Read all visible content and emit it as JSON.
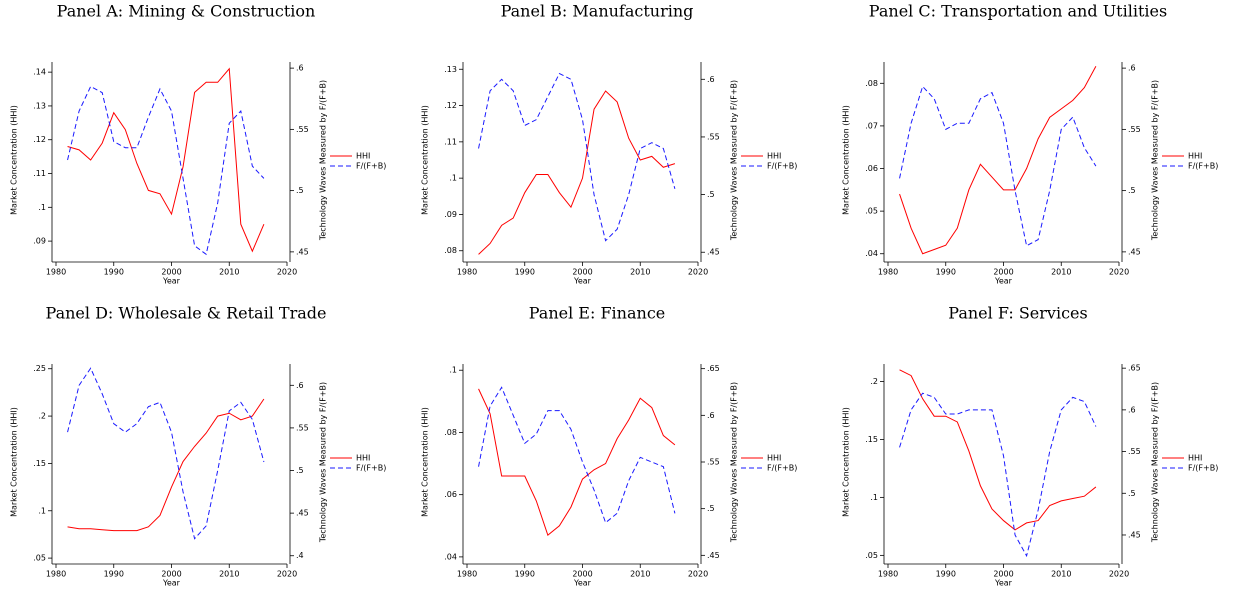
{
  "chart_data": [
    {
      "type": "line",
      "title": "Panel A: Mining & Construction",
      "x_label": "Year",
      "y_label": "Market Concentration (HHI)",
      "y2_label": "Technology Waves Measured by F/(F+B)",
      "x": [
        1982,
        1984,
        1986,
        1988,
        1990,
        1992,
        1994,
        1996,
        1998,
        2000,
        2002,
        2004,
        2006,
        2008,
        2010,
        2012,
        2014,
        2016
      ],
      "xlim": [
        1980,
        2020
      ],
      "xticks": [
        1980,
        1990,
        2000,
        2010,
        2020
      ],
      "ylim": [
        0.085,
        0.143
      ],
      "yticks": [
        {
          "value": 0.09,
          "label": ".09"
        },
        {
          "value": 0.1,
          "label": ".1"
        },
        {
          "value": 0.11,
          "label": ".11"
        },
        {
          "value": 0.12,
          "label": ".12"
        },
        {
          "value": 0.13,
          "label": ".13"
        },
        {
          "value": 0.14,
          "label": ".14"
        }
      ],
      "y2lim": [
        0.445,
        0.605
      ],
      "y2ticks": [
        {
          "value": 0.45,
          "label": ".45"
        },
        {
          "value": 0.5,
          "label": ".5"
        },
        {
          "value": 0.55,
          "label": ".55"
        },
        {
          "value": 0.6,
          "label": ".6"
        }
      ],
      "legend": "right",
      "series": [
        {
          "name": "HHI",
          "color": "#ff0000",
          "line_style": "solid",
          "values": [
            0.118,
            0.117,
            0.114,
            0.119,
            0.128,
            0.123,
            0.113,
            0.105,
            0.104,
            0.098,
            0.112,
            0.134,
            0.137,
            0.137,
            0.141,
            0.095,
            0.087,
            0.095
          ]
        },
        {
          "name": "F/(F+B)",
          "color": "#1a1aff",
          "line_style": "dashed",
          "axis": "y2",
          "values": [
            0.525,
            0.565,
            0.585,
            0.58,
            0.54,
            0.535,
            0.535,
            0.56,
            0.583,
            0.565,
            0.51,
            0.455,
            0.448,
            0.49,
            0.555,
            0.565,
            0.52,
            0.51
          ]
        }
      ]
    },
    {
      "type": "line",
      "title": "Panel B: Manufacturing",
      "x_label": "Year",
      "y_label": "Market Concentration (HHI)",
      "y2_label": "Technology Waves Measured by F/(F+B)",
      "x": [
        1982,
        1984,
        1986,
        1988,
        1990,
        1992,
        1994,
        1996,
        1998,
        2000,
        2002,
        2004,
        2006,
        2008,
        2010,
        2012,
        2014,
        2016
      ],
      "xlim": [
        1980,
        2020
      ],
      "xticks": [
        1980,
        1990,
        2000,
        2010,
        2020
      ],
      "ylim": [
        0.078,
        0.132
      ],
      "yticks": [
        {
          "value": 0.08,
          "label": ".08"
        },
        {
          "value": 0.09,
          "label": ".09"
        },
        {
          "value": 0.1,
          "label": ".1"
        },
        {
          "value": 0.11,
          "label": ".11"
        },
        {
          "value": 0.12,
          "label": ".12"
        },
        {
          "value": 0.13,
          "label": ".13"
        }
      ],
      "y2lim": [
        0.445,
        0.615
      ],
      "y2ticks": [
        {
          "value": 0.45,
          "label": ".45"
        },
        {
          "value": 0.5,
          "label": ".5"
        },
        {
          "value": 0.55,
          "label": ".55"
        },
        {
          "value": 0.6,
          "label": ".6"
        }
      ],
      "legend": "right",
      "series": [
        {
          "name": "HHI",
          "color": "#ff0000",
          "line_style": "solid",
          "values": [
            0.079,
            0.082,
            0.087,
            0.089,
            0.096,
            0.101,
            0.101,
            0.096,
            0.092,
            0.1,
            0.119,
            0.124,
            0.121,
            0.111,
            0.105,
            0.106,
            0.103,
            0.104
          ]
        },
        {
          "name": "F/(F+B)",
          "color": "#1a1aff",
          "line_style": "dashed",
          "axis": "y2",
          "values": [
            0.54,
            0.59,
            0.6,
            0.59,
            0.56,
            0.565,
            0.585,
            0.605,
            0.6,
            0.565,
            0.5,
            0.46,
            0.47,
            0.5,
            0.54,
            0.545,
            0.54,
            0.505
          ]
        }
      ]
    },
    {
      "type": "line",
      "title": "Panel C: Transportation and Utilities",
      "x_label": "Year",
      "y_label": "Market Concentration (HHI)",
      "y2_label": "Technology Waves Measured by F/(F+B)",
      "x": [
        1982,
        1984,
        1986,
        1988,
        1990,
        1992,
        1994,
        1996,
        1998,
        2000,
        2002,
        2004,
        2006,
        2008,
        2010,
        2012,
        2014,
        2016
      ],
      "xlim": [
        1980,
        2020
      ],
      "xticks": [
        1980,
        1990,
        2000,
        2010,
        2020
      ],
      "ylim": [
        0.039,
        0.085
      ],
      "yticks": [
        {
          "value": 0.04,
          "label": ".04"
        },
        {
          "value": 0.05,
          "label": ".05"
        },
        {
          "value": 0.06,
          "label": ".06"
        },
        {
          "value": 0.07,
          "label": ".07"
        },
        {
          "value": 0.08,
          "label": ".08"
        }
      ],
      "y2lim": [
        0.445,
        0.605
      ],
      "y2ticks": [
        {
          "value": 0.45,
          "label": ".45"
        },
        {
          "value": 0.5,
          "label": ".5"
        },
        {
          "value": 0.55,
          "label": ".55"
        },
        {
          "value": 0.6,
          "label": ".6"
        }
      ],
      "legend": "right",
      "series": [
        {
          "name": "HHI",
          "color": "#ff0000",
          "line_style": "solid",
          "values": [
            0.054,
            0.046,
            0.04,
            0.041,
            0.042,
            0.046,
            0.055,
            0.061,
            0.058,
            0.055,
            0.055,
            0.06,
            0.067,
            0.072,
            0.074,
            0.076,
            0.079,
            0.084
          ]
        },
        {
          "name": "F/(F+B)",
          "color": "#1a1aff",
          "line_style": "dashed",
          "axis": "y2",
          "values": [
            0.51,
            0.555,
            0.585,
            0.575,
            0.55,
            0.555,
            0.555,
            0.575,
            0.58,
            0.555,
            0.5,
            0.455,
            0.46,
            0.5,
            0.55,
            0.56,
            0.535,
            0.52
          ]
        }
      ]
    },
    {
      "type": "line",
      "title": "Panel D: Wholesale & Retail Trade",
      "x_label": "Year",
      "y_label": "Market Concentration (HHI)",
      "y2_label": "Technology Waves Measured by F/(F+B)",
      "x": [
        1982,
        1984,
        1986,
        1988,
        1990,
        1992,
        1994,
        1996,
        1998,
        2000,
        2002,
        2004,
        2006,
        2008,
        2010,
        2012,
        2014,
        2016
      ],
      "xlim": [
        1980,
        2020
      ],
      "xticks": [
        1980,
        1990,
        2000,
        2010,
        2020
      ],
      "ylim": [
        0.048,
        0.255
      ],
      "yticks": [
        {
          "value": 0.05,
          "label": ".05"
        },
        {
          "value": 0.1,
          "label": ".1"
        },
        {
          "value": 0.15,
          "label": ".15"
        },
        {
          "value": 0.2,
          "label": ".2"
        },
        {
          "value": 0.25,
          "label": ".25"
        }
      ],
      "y2lim": [
        0.395,
        0.625
      ],
      "y2ticks": [
        {
          "value": 0.4,
          "label": ".4"
        },
        {
          "value": 0.45,
          "label": ".45"
        },
        {
          "value": 0.5,
          "label": ".5"
        },
        {
          "value": 0.55,
          "label": ".55"
        },
        {
          "value": 0.6,
          "label": ".6"
        }
      ],
      "legend": "right",
      "series": [
        {
          "name": "HHI",
          "color": "#ff0000",
          "line_style": "solid",
          "values": [
            0.083,
            0.081,
            0.081,
            0.08,
            0.079,
            0.079,
            0.079,
            0.083,
            0.095,
            0.125,
            0.152,
            0.168,
            0.182,
            0.2,
            0.203,
            0.196,
            0.2,
            0.218
          ]
        },
        {
          "name": "F/(F+B)",
          "color": "#1a1aff",
          "line_style": "dashed",
          "axis": "y2",
          "values": [
            0.545,
            0.6,
            0.62,
            0.59,
            0.555,
            0.545,
            0.555,
            0.575,
            0.58,
            0.545,
            0.475,
            0.42,
            0.435,
            0.5,
            0.57,
            0.58,
            0.56,
            0.51
          ]
        }
      ]
    },
    {
      "type": "line",
      "title": "Panel E: Finance",
      "x_label": "Year",
      "y_label": "Market Concentration (HHI)",
      "y2_label": "Technology Waves Measured by F/(F+B)",
      "x": [
        1982,
        1984,
        1986,
        1988,
        1990,
        1992,
        1994,
        1996,
        1998,
        2000,
        2002,
        2004,
        2006,
        2008,
        2010,
        2012,
        2014,
        2016
      ],
      "xlim": [
        1980,
        2020
      ],
      "xticks": [
        1980,
        1990,
        2000,
        2010,
        2020
      ],
      "ylim": [
        0.039,
        0.102
      ],
      "yticks": [
        {
          "value": 0.04,
          "label": ".04"
        },
        {
          "value": 0.06,
          "label": ".06"
        },
        {
          "value": 0.08,
          "label": ".08"
        },
        {
          "value": 0.1,
          "label": ".1"
        }
      ],
      "y2lim": [
        0.445,
        0.655
      ],
      "y2ticks": [
        {
          "value": 0.45,
          "label": ".45"
        },
        {
          "value": 0.5,
          "label": ".5"
        },
        {
          "value": 0.55,
          "label": ".55"
        },
        {
          "value": 0.6,
          "label": ".6"
        },
        {
          "value": 0.65,
          "label": ".65"
        }
      ],
      "legend": "right",
      "series": [
        {
          "name": "HHI",
          "color": "#ff0000",
          "line_style": "solid",
          "values": [
            0.094,
            0.086,
            0.066,
            0.066,
            0.066,
            0.058,
            0.047,
            0.05,
            0.056,
            0.065,
            0.068,
            0.07,
            0.078,
            0.084,
            0.091,
            0.088,
            0.079,
            0.076
          ]
        },
        {
          "name": "F/(F+B)",
          "color": "#1a1aff",
          "line_style": "dashed",
          "axis": "y2",
          "values": [
            0.545,
            0.61,
            0.63,
            0.6,
            0.57,
            0.58,
            0.605,
            0.605,
            0.585,
            0.55,
            0.52,
            0.485,
            0.495,
            0.53,
            0.555,
            0.55,
            0.545,
            0.495
          ]
        }
      ]
    },
    {
      "type": "line",
      "title": "Panel F: Services",
      "x_label": "Year",
      "y_label": "Market Concentration (HHI)",
      "y2_label": "Technology Waves Measured by F/(F+B)",
      "x": [
        1982,
        1984,
        1986,
        1988,
        1990,
        1992,
        1994,
        1996,
        1998,
        2000,
        2002,
        2004,
        2006,
        2008,
        2010,
        2012,
        2014,
        2016
      ],
      "xlim": [
        1980,
        2020
      ],
      "xticks": [
        1980,
        1990,
        2000,
        2010,
        2020
      ],
      "ylim": [
        0.046,
        0.215
      ],
      "yticks": [
        {
          "value": 0.05,
          "label": ".05"
        },
        {
          "value": 0.1,
          "label": ".1"
        },
        {
          "value": 0.15,
          "label": ".15"
        },
        {
          "value": 0.2,
          "label": ".2"
        }
      ],
      "y2lim": [
        0.42,
        0.655
      ],
      "y2ticks": [
        {
          "value": 0.45,
          "label": ".45"
        },
        {
          "value": 0.5,
          "label": ".5"
        },
        {
          "value": 0.55,
          "label": ".55"
        },
        {
          "value": 0.6,
          "label": ".6"
        },
        {
          "value": 0.65,
          "label": ".65"
        }
      ],
      "legend": "right",
      "series": [
        {
          "name": "HHI",
          "color": "#ff0000",
          "line_style": "solid",
          "values": [
            0.21,
            0.205,
            0.185,
            0.17,
            0.17,
            0.165,
            0.14,
            0.11,
            0.09,
            0.08,
            0.072,
            0.078,
            0.08,
            0.093,
            0.097,
            0.099,
            0.101,
            0.109
          ]
        },
        {
          "name": "F/(F+B)",
          "color": "#1a1aff",
          "line_style": "dashed",
          "axis": "y2",
          "values": [
            0.555,
            0.6,
            0.62,
            0.615,
            0.595,
            0.595,
            0.6,
            0.6,
            0.6,
            0.545,
            0.45,
            0.425,
            0.48,
            0.55,
            0.6,
            0.615,
            0.61,
            0.58
          ]
        }
      ]
    }
  ]
}
